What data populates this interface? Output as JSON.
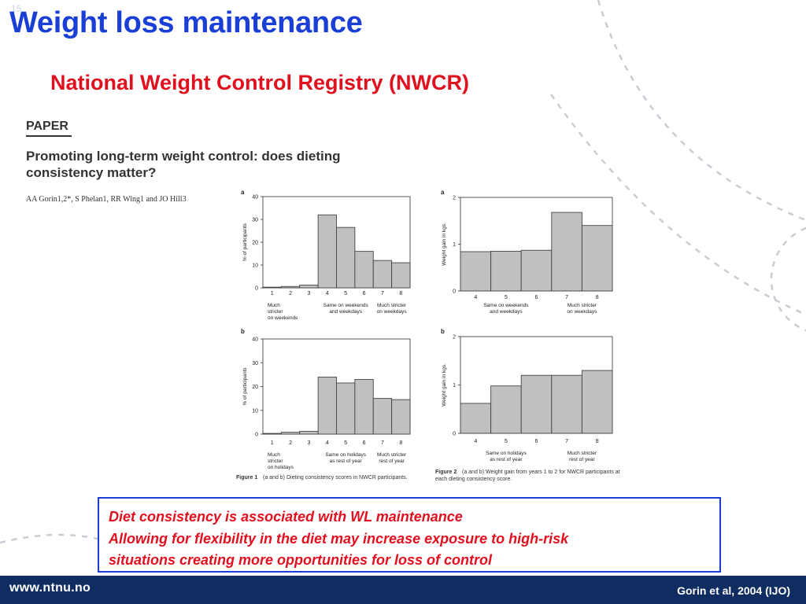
{
  "slide": {
    "number": "15",
    "title": "Weight loss maintenance",
    "subtitle": "National Weight Control Registry (NWCR)"
  },
  "paper": {
    "label": "PAPER",
    "title": "Promoting long-term weight control: does dieting consistency matter?",
    "authors": "AA Gorin1,2*, S Phelan1, RR Wing1 and JO Hill3"
  },
  "figures": {
    "figure1_caption_label": "Figure 1",
    "figure1_caption_text": "(a and b) Dieting consistency scores in NWCR participants.",
    "figure2_caption_label": "Figure 2",
    "figure2_caption_text_line1": "(a and b) Weight gain from years 1 to 2 for NWCR participants at",
    "figure2_caption_text_line2": "each dieting consistency score."
  },
  "chart_data": [
    {
      "id": "fig1a",
      "type": "bar",
      "panel": "a",
      "ylabel": "% of participants",
      "categories": [
        "1",
        "2",
        "3",
        "4",
        "5",
        "6",
        "7",
        "8"
      ],
      "values": [
        0.3,
        0.6,
        1.2,
        32,
        26.5,
        16,
        12,
        11
      ],
      "ylim": [
        0,
        40
      ],
      "yticks": [
        0,
        10,
        20,
        30,
        40
      ],
      "group_labels": [
        {
          "lines": [
            "Much",
            "stricter",
            "on weekends"
          ],
          "align": "left"
        },
        {
          "lines": [
            "Same on weekends",
            "and weekdays"
          ],
          "align": "center"
        },
        {
          "lines": [
            "Much stricter",
            "on weekdays"
          ],
          "align": "center"
        }
      ]
    },
    {
      "id": "fig1b",
      "type": "bar",
      "panel": "b",
      "ylabel": "% of participants",
      "categories": [
        "1",
        "2",
        "3",
        "4",
        "5",
        "6",
        "7",
        "8"
      ],
      "values": [
        0.3,
        0.8,
        1.2,
        24,
        21.5,
        23,
        15,
        14.5
      ],
      "ylim": [
        0,
        40
      ],
      "yticks": [
        0,
        10,
        20,
        30,
        40
      ],
      "group_labels": [
        {
          "lines": [
            "Much",
            "stricter",
            "on holidays"
          ],
          "align": "left"
        },
        {
          "lines": [
            "Same on holidays",
            "as rest of year"
          ],
          "align": "center"
        },
        {
          "lines": [
            "Much stricter",
            "rest of year"
          ],
          "align": "center"
        }
      ]
    },
    {
      "id": "fig2a",
      "type": "bar",
      "panel": "a",
      "ylabel": "Weight gain in kgs.",
      "categories": [
        "4",
        "5",
        "6",
        "7",
        "8"
      ],
      "values": [
        0.84,
        0.85,
        0.87,
        1.68,
        1.4
      ],
      "ylim": [
        0,
        2
      ],
      "yticks": [
        0,
        1,
        2
      ],
      "group_labels": [
        {
          "lines": [
            "Same on weekends",
            "and weekdays"
          ],
          "align": "center"
        },
        {
          "lines": [
            "Much stricter",
            "on weekdays"
          ],
          "align": "center"
        }
      ]
    },
    {
      "id": "fig2b",
      "type": "bar",
      "panel": "b",
      "ylabel": "Weight gain in kgs.",
      "categories": [
        "4",
        "5",
        "6",
        "7",
        "8"
      ],
      "values": [
        0.62,
        0.98,
        1.2,
        1.2,
        1.3
      ],
      "ylim": [
        0,
        2
      ],
      "yticks": [
        0,
        1,
        2
      ],
      "group_labels": [
        {
          "lines": [
            "Same on holidays",
            "as rest of year"
          ],
          "align": "center"
        },
        {
          "lines": [
            "Much stricter",
            "rest of year"
          ],
          "align": "center"
        }
      ]
    }
  ],
  "callout": {
    "line1": "Diet consistency is associated with WL maintenance",
    "line2": "Allowing for flexibility in the diet may increase exposure to high-risk",
    "line3": "situations creating more opportunities for loss of control"
  },
  "footer": {
    "url": "www.ntnu.no",
    "citation": "Gorin et al, 2004 (IJO)"
  },
  "colors": {
    "title_blue": "#1a3fd6",
    "accent_red": "#e0101e",
    "footer_navy": "#0f2d61",
    "bar_fill": "#c0c0c0"
  }
}
